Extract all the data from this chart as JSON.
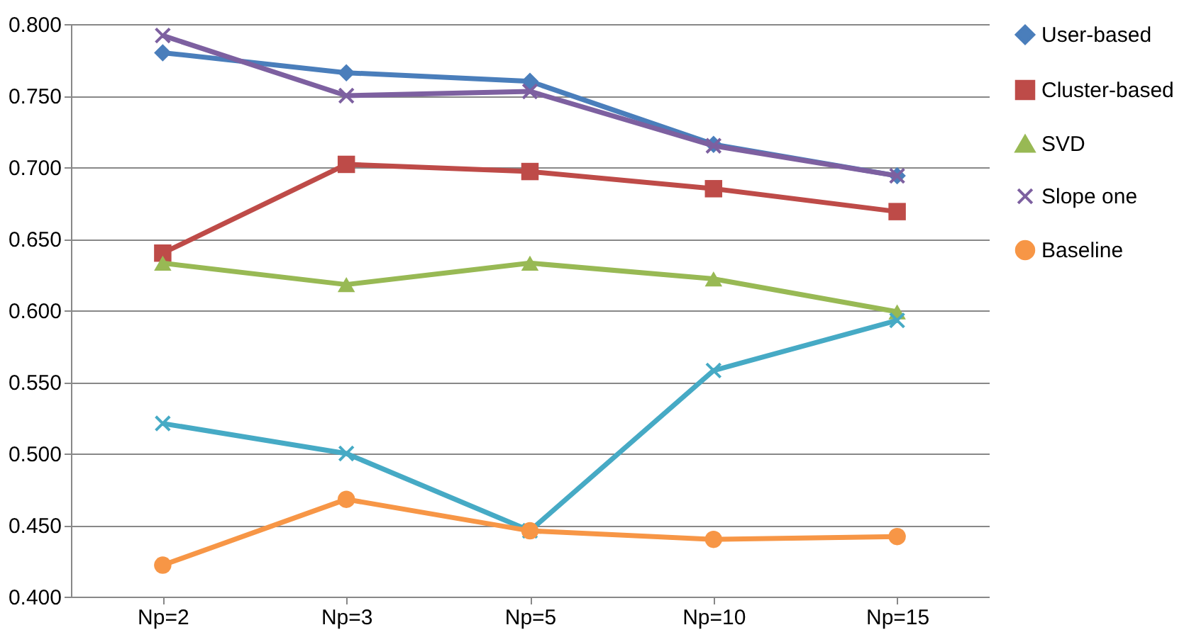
{
  "chart_data": {
    "type": "line",
    "categories": [
      "Np=2",
      "Np=3",
      "Np=5",
      "Np=10",
      "Np=15"
    ],
    "ylim": [
      0.4,
      0.8
    ],
    "yticks": [
      {
        "value": 0.4,
        "label": "0.400"
      },
      {
        "value": 0.45,
        "label": "0.450"
      },
      {
        "value": 0.5,
        "label": "0.500"
      },
      {
        "value": 0.55,
        "label": "0.550"
      },
      {
        "value": 0.6,
        "label": "0.600"
      },
      {
        "value": 0.65,
        "label": "0.650"
      },
      {
        "value": 0.7,
        "label": "0.700"
      },
      {
        "value": 0.75,
        "label": "0.750"
      },
      {
        "value": 0.8,
        "label": "0.800"
      }
    ],
    "grid": "y",
    "legend": "right",
    "series": [
      {
        "name": "User-based",
        "color": "#4a7ebb",
        "marker": "diamond",
        "values": [
          0.78,
          0.766,
          0.76,
          0.716,
          0.694
        ]
      },
      {
        "name": "Cluster-based",
        "color": "#be4b48",
        "marker": "square",
        "values": [
          0.64,
          0.702,
          0.697,
          0.685,
          0.669
        ]
      },
      {
        "name": "SVD",
        "color": "#98b954",
        "marker": "triangle",
        "values": [
          0.633,
          0.618,
          0.633,
          0.622,
          0.599
        ]
      },
      {
        "name": "Slope one",
        "color": "#7d60a0",
        "marker": "cross",
        "values": [
          0.792,
          0.75,
          0.753,
          0.715,
          0.694
        ]
      },
      {
        "color": "#46aac5",
        "marker": "cross",
        "values": [
          0.521,
          0.5,
          0.446,
          0.558,
          0.593
        ]
      },
      {
        "name": "Baseline",
        "color": "#f79646",
        "marker": "circle",
        "values": [
          0.422,
          0.468,
          0.446,
          0.44,
          0.442
        ]
      }
    ]
  }
}
